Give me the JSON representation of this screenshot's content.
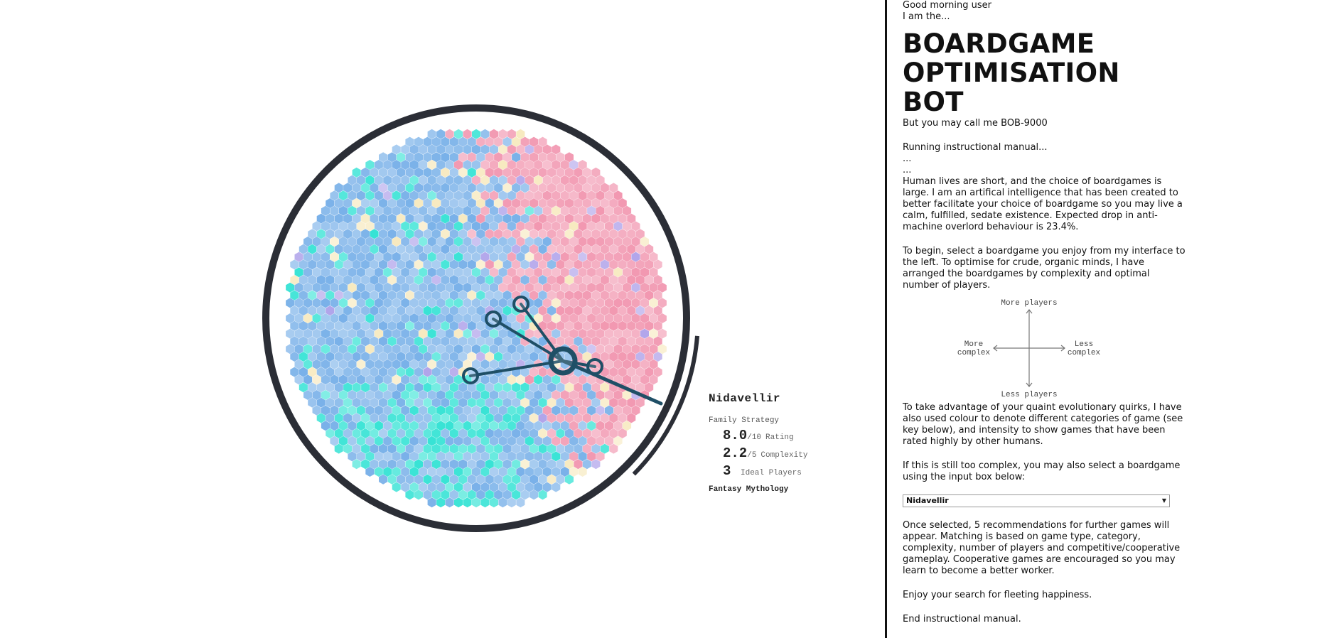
{
  "viz": {
    "selected_game": {
      "title": "Nidavellir",
      "subtitle": "Family Strategy",
      "rating": "8.0",
      "rating_unit": "/10",
      "rating_label": "Rating",
      "complexity": "2.2",
      "complexity_unit": "/5",
      "complexity_label": "Complexity",
      "players": "3",
      "players_label": "Ideal Players",
      "categories": "Fantasy Mythology"
    },
    "colors": {
      "ring": "#2b2e36",
      "link": "#1f4f66",
      "hex_blue": "#6aa8e6",
      "hex_cyan": "#20e0d0",
      "hex_pink": "#f08ca8",
      "hex_cream": "#f6e7b8",
      "hex_purple": "#a89ae8"
    }
  },
  "sidebar": {
    "greeting": "Good morning user",
    "intro": "I am the...",
    "title_lines": [
      "BOARDGAME",
      "OPTIMISATION",
      "BOT"
    ],
    "alias": "But you may call me BOB-9000",
    "running": "Running instructional manual...",
    "dots1": "...",
    "dots2": "...",
    "para1": "Human lives are short, and the choice of boardgames is large. I am an artifical intelligence that has been created to better facilitate your choice of boardgame so you may live a calm, fulfilled, sedate existence. Expected drop in anti-machine overlord behaviour is 23.4%.",
    "para2": "To begin, select a boardgame you enjoy from my interface to the left. To optimise for crude, organic minds, I have arranged the boardgames by complexity and optimal number of players.",
    "axes": {
      "top": "More players",
      "bottom": "Less players",
      "left_line1": "More",
      "left_line2": "complex",
      "right_line1": "Less",
      "right_line2": "complex"
    },
    "para3": "To take advantage of your quaint evolutionary quirks, I have also used colour to denote different categories of game (see key below), and intensity to show games that have been rated highly by other humans.",
    "para4": "If this is still too complex, you may also select a boardgame using the input box below:",
    "select_value": "Nidavellir",
    "para5": "Once selected, 5 recommendations for further games will appear. Matching is based on  game type, category, complexity, number of players and competitive/cooperative gameplay. Cooperative games are encouraged so you may learn to become a better worker.",
    "para6": "Enjoy your search for fleeting happiness.",
    "para7": "End instructional manual."
  }
}
